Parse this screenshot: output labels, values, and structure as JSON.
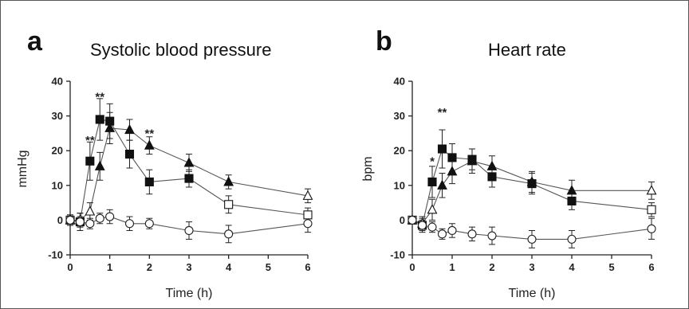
{
  "colors": {
    "frame": "#555555",
    "ink": "#222222",
    "series_line": "#555555",
    "marker_filled": "#111111",
    "marker_open_fill": "#ffffff"
  },
  "chart_data": [
    {
      "type": "line",
      "panel_letter": "a",
      "title": "Systolic blood pressure",
      "xlabel": "Time (h)",
      "ylabel": "mmHg",
      "xlim": [
        0,
        6
      ],
      "ylim": [
        -10,
        40
      ],
      "xticks": [
        0,
        1,
        2,
        3,
        4,
        5,
        6
      ],
      "yticks": [
        -10,
        0,
        10,
        20,
        30,
        40
      ],
      "grid": false,
      "series": [
        {
          "marker": "filled-square",
          "x": [
            0,
            0.25,
            0.5,
            0.75,
            1,
            1.5,
            2,
            3,
            4,
            6
          ],
          "y": [
            0,
            -0.5,
            17,
            29,
            28.5,
            19,
            11,
            12,
            4.5,
            1.5
          ],
          "err": [
            1.5,
            2.5,
            5.5,
            6,
            5,
            4,
            3.5,
            2.5,
            2.5,
            2
          ]
        },
        {
          "marker": "filled-triangle",
          "x": [
            0,
            0.25,
            0.5,
            0.75,
            1,
            1.5,
            2,
            3,
            4,
            6
          ],
          "y": [
            0,
            0,
            2.5,
            15.5,
            26.5,
            26,
            21.5,
            16.5,
            11,
            7
          ],
          "err": [
            1.5,
            2,
            2.5,
            4,
            4.5,
            3,
            2.5,
            2.5,
            2,
            2
          ]
        },
        {
          "marker": "open-circle",
          "x": [
            0,
            0.25,
            0.5,
            0.75,
            1,
            1.5,
            2,
            3,
            4,
            6
          ],
          "y": [
            0,
            -0.5,
            -1,
            0.5,
            1,
            -1,
            -1,
            -3,
            -4,
            -1
          ],
          "err": [
            1,
            1.5,
            1.5,
            1.5,
            2,
            2,
            1.5,
            2.5,
            2.5,
            2.5
          ]
        }
      ],
      "annotations": [
        {
          "text": "**",
          "x": 0.5,
          "y": 23
        },
        {
          "text": "**",
          "x": 0.75,
          "y": 35.5
        },
        {
          "text": "**",
          "x": 2,
          "y": 25
        }
      ]
    },
    {
      "type": "line",
      "panel_letter": "b",
      "title": "Heart rate",
      "xlabel": "Time (h)",
      "ylabel": "bpm",
      "xlim": [
        0,
        6
      ],
      "ylim": [
        -10,
        40
      ],
      "xticks": [
        0,
        1,
        2,
        3,
        4,
        5,
        6
      ],
      "yticks": [
        -10,
        0,
        10,
        20,
        30,
        40
      ],
      "grid": false,
      "series": [
        {
          "marker": "filled-square",
          "x": [
            0,
            0.25,
            0.5,
            0.75,
            1,
            1.5,
            2,
            3,
            4,
            6
          ],
          "y": [
            0,
            -1.5,
            11,
            20.5,
            18,
            17.5,
            12.5,
            10.5,
            5.5,
            3
          ],
          "err": [
            1,
            2,
            4.5,
            5.5,
            4,
            3,
            3,
            3,
            2.5,
            2
          ]
        },
        {
          "marker": "filled-triangle",
          "x": [
            0,
            0.25,
            0.5,
            0.75,
            1,
            1.5,
            2,
            3,
            4,
            6
          ],
          "y": [
            0,
            -1,
            3,
            10,
            14,
            17,
            15.5,
            11,
            8.5,
            8.5
          ],
          "err": [
            1,
            2,
            3,
            3.5,
            3.5,
            3.5,
            3,
            3,
            3,
            2.5
          ]
        },
        {
          "marker": "open-circle",
          "x": [
            0,
            0.25,
            0.5,
            0.75,
            1,
            1.5,
            2,
            3,
            4,
            6
          ],
          "y": [
            0,
            -1.5,
            -2,
            -4,
            -3,
            -4,
            -4.5,
            -5.5,
            -5.5,
            -2.5
          ],
          "err": [
            1,
            1.5,
            1.5,
            1.5,
            2,
            2,
            2.5,
            2.5,
            2.5,
            3
          ]
        }
      ],
      "annotations": [
        {
          "text": "*",
          "x": 0.5,
          "y": 17
        },
        {
          "text": "**",
          "x": 0.75,
          "y": 31
        }
      ]
    }
  ]
}
